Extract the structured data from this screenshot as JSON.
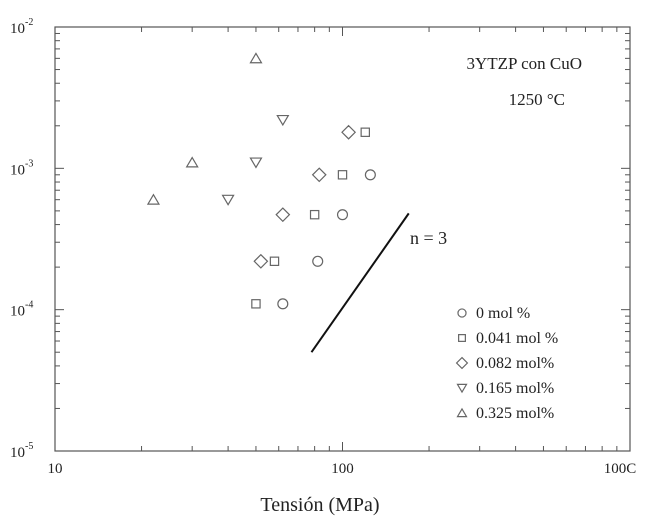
{
  "chart_data": {
    "type": "scatter",
    "title": "",
    "xlabel": "Tensión (MPa)",
    "ylabel": "",
    "x_scale": "log",
    "y_scale": "log",
    "xlim": [
      10,
      1000
    ],
    "ylim": [
      1e-05,
      0.01
    ],
    "x_tick_labels": [
      "10",
      "100",
      "100C"
    ],
    "y_tick_labels": [
      {
        "base": "10",
        "exp": "-5"
      },
      {
        "base": "10",
        "exp": "-4"
      },
      {
        "base": "10",
        "exp": "-3"
      },
      {
        "base": "10",
        "exp": "-2"
      }
    ],
    "annotation": {
      "line1": "3YTZP con CuO",
      "line2": "1250 °C"
    },
    "slope_line": {
      "label": "n = 3",
      "x": [
        78,
        170
      ],
      "y": [
        5e-05,
        0.00048
      ]
    },
    "legend_position": "bottom-right",
    "series": [
      {
        "name": "0 mol %",
        "marker": "circle",
        "points": [
          [
            62,
            0.00011
          ],
          [
            82,
            0.00022
          ],
          [
            100,
            0.00047
          ],
          [
            125,
            0.0009
          ]
        ]
      },
      {
        "name": "0.041 mol %",
        "marker": "square",
        "points": [
          [
            50,
            0.00011
          ],
          [
            58,
            0.00022
          ],
          [
            80,
            0.00047
          ],
          [
            100,
            0.0009
          ],
          [
            120,
            0.0018
          ]
        ]
      },
      {
        "name": "0.082 mol%",
        "marker": "diamond",
        "points": [
          [
            52,
            0.00022
          ],
          [
            62,
            0.00047
          ],
          [
            83,
            0.0009
          ],
          [
            105,
            0.0018
          ]
        ]
      },
      {
        "name": "0.165 mol%",
        "marker": "triangle-down",
        "points": [
          [
            40,
            0.0006
          ],
          [
            50,
            0.0011
          ],
          [
            62,
            0.0022
          ]
        ]
      },
      {
        "name": "0.325 mol%",
        "marker": "triangle-up",
        "points": [
          [
            22,
            0.0006
          ],
          [
            30,
            0.0011
          ],
          [
            50,
            0.006
          ]
        ]
      }
    ]
  }
}
